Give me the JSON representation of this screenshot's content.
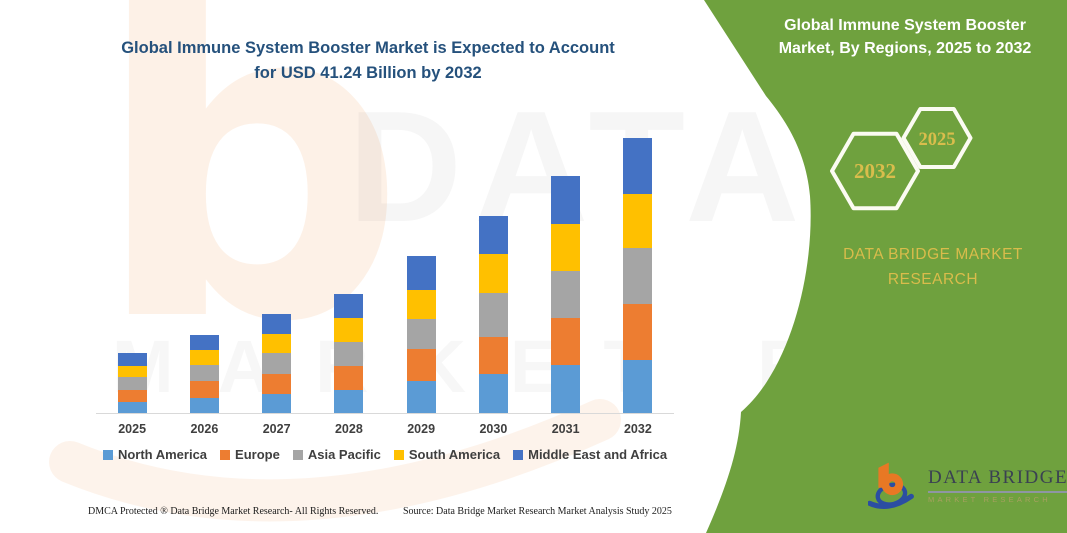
{
  "left_title": {
    "line1": "Global Immune System Booster Market is Expected to Account",
    "line2": "for USD 41.24 Billion by 2032"
  },
  "right_panel": {
    "title_line1": "Global Immune System Booster",
    "title_line2": "Market, By Regions, 2025 to 2032",
    "hex_large_label": "2032",
    "hex_small_label": "2025",
    "brand_line1": "DATA BRIDGE MARKET",
    "brand_line2": "RESEARCH",
    "panel_color": "#6FA13E",
    "accent_gold": "#D9BC4B"
  },
  "logo": {
    "title": "DATA BRIDGE",
    "subtitle": "MARKET RESEARCH"
  },
  "watermark": {
    "glyph": "b",
    "line1": "DATA BRIDGE",
    "line2": "MARKET RESEARCH"
  },
  "footer": {
    "left": "DMCA Protected ® Data Bridge Market Research-  All Rights Reserved.",
    "right": "Source: Data Bridge Market Research  Market Analysis Study 2025"
  },
  "chart_data": {
    "type": "bar",
    "stacked": true,
    "unit": "USD Billion",
    "grid": false,
    "legend_position": "bottom",
    "categories": [
      "2025",
      "2026",
      "2027",
      "2028",
      "2029",
      "2030",
      "2031",
      "2032"
    ],
    "series": [
      {
        "name": "North America",
        "color": "#5B9BD5",
        "values": [
          1.6,
          2.2,
          2.8,
          3.5,
          4.8,
          5.9,
          7.2,
          8.0
        ]
      },
      {
        "name": "Europe",
        "color": "#ED7D31",
        "values": [
          1.9,
          2.6,
          3.0,
          3.5,
          4.8,
          5.5,
          7.0,
          8.3
        ]
      },
      {
        "name": "Asia Pacific",
        "color": "#A5A5A5",
        "values": [
          1.9,
          2.4,
          3.2,
          3.7,
          4.5,
          6.6,
          7.1,
          8.5
        ]
      },
      {
        "name": "South America",
        "color": "#FFC000",
        "values": [
          1.6,
          2.3,
          2.8,
          3.5,
          4.4,
          5.8,
          7.1,
          8.1
        ]
      },
      {
        "name": "Middle East and Africa",
        "color": "#4472C4",
        "values": [
          2.0,
          2.2,
          3.0,
          3.6,
          5.1,
          5.7,
          7.2,
          8.3
        ]
      }
    ],
    "totals_by_year": [
      9.0,
      11.7,
      14.8,
      17.8,
      23.6,
      29.5,
      35.6,
      41.2
    ],
    "stated_total_2032": 41.24
  }
}
